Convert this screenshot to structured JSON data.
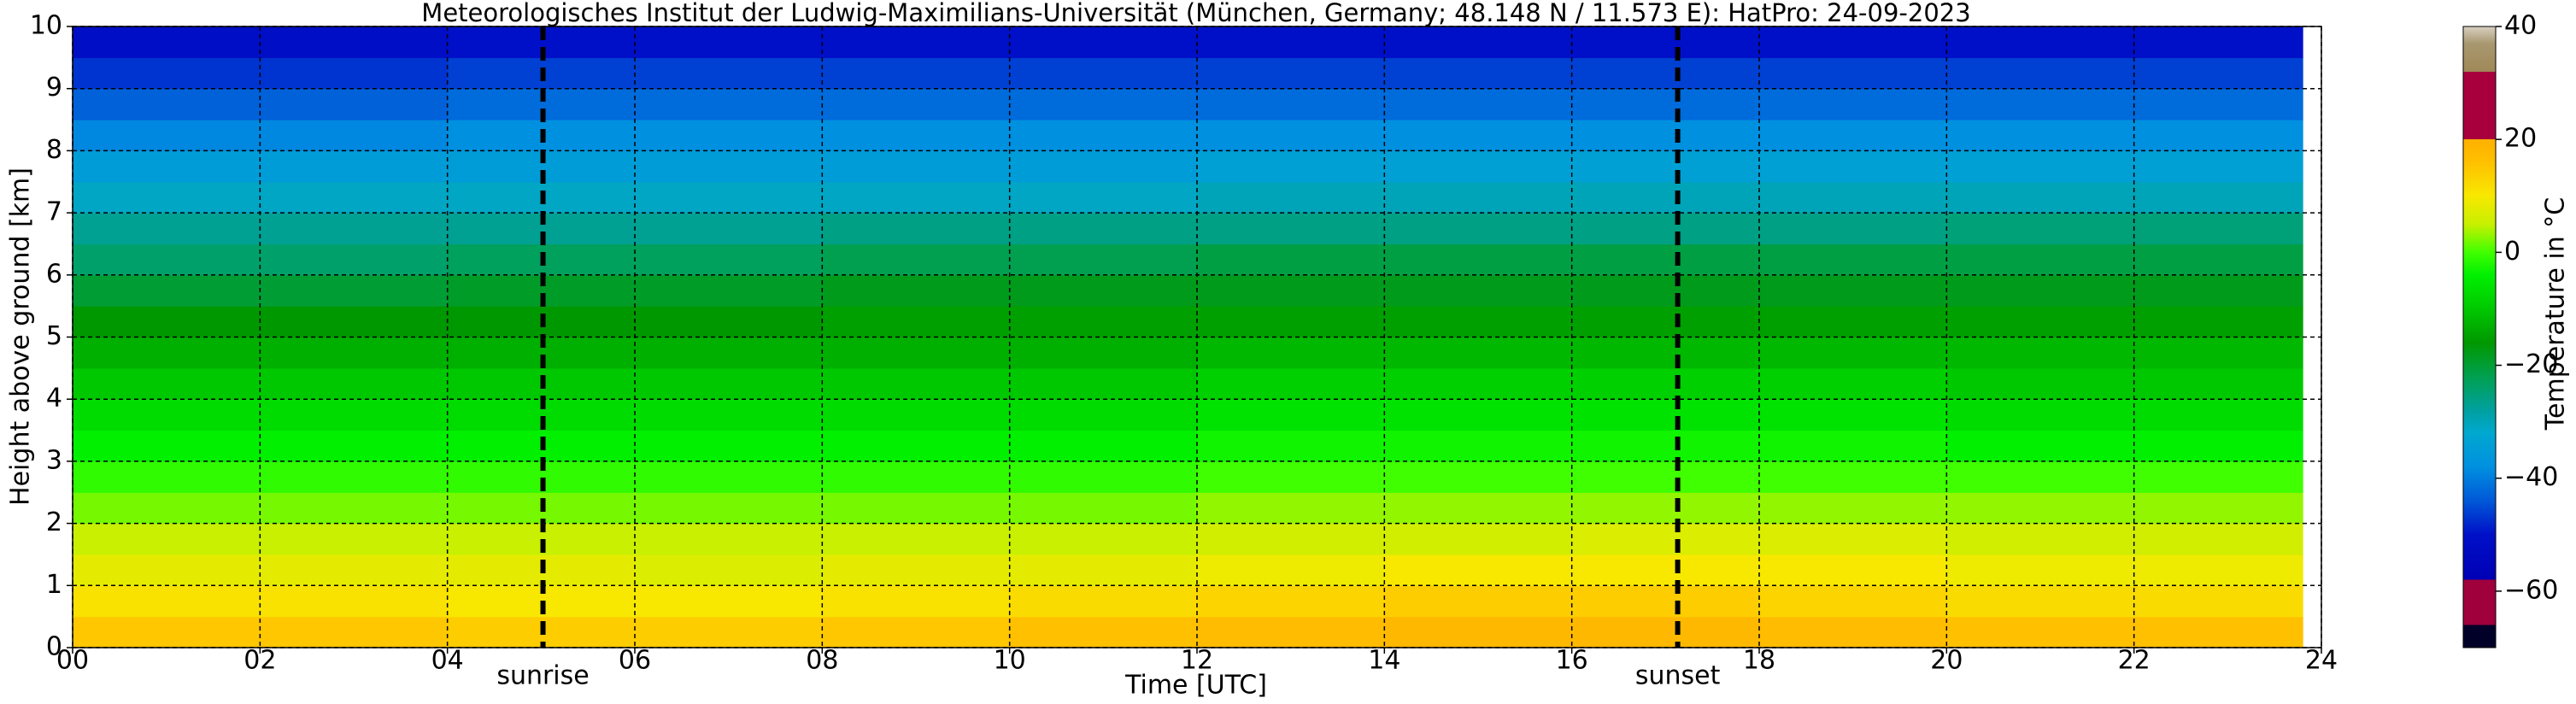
{
  "chart_data": {
    "type": "heatmap",
    "title": "Meteorologisches Institut der Ludwig-Maximilians-Universität (München, Germany; 48.148 N / 11.573 E):    HatPro: 24-09-2023",
    "xlabel": "Time [UTC]",
    "ylabel": "Height above ground [km]",
    "x_edges": [
      0,
      2,
      4,
      6,
      8,
      10,
      12,
      14,
      16,
      18,
      20,
      22,
      23.8
    ],
    "y_edges": [
      0,
      0.5,
      1,
      1.5,
      2,
      2.5,
      3,
      3.5,
      4,
      4.5,
      5,
      5.5,
      6,
      6.5,
      7,
      7.5,
      8,
      8.5,
      9,
      9.5,
      10
    ],
    "values": [
      [
        15,
        15,
        14,
        14,
        15,
        16,
        17,
        18,
        18,
        17,
        16,
        16
      ],
      [
        11,
        11,
        10,
        10,
        11,
        12,
        13,
        14,
        14,
        13,
        12,
        12
      ],
      [
        8,
        8,
        8,
        7,
        8,
        8,
        9,
        10,
        10,
        10,
        9,
        9
      ],
      [
        5,
        5,
        5,
        5,
        5,
        5,
        6,
        6,
        7,
        7,
        6,
        6
      ],
      [
        2,
        2,
        2,
        2,
        2,
        2,
        3,
        3,
        3,
        3,
        3,
        3
      ],
      [
        -1,
        -1,
        -1,
        -1,
        -1,
        -1,
        0,
        0,
        0,
        0,
        0,
        0
      ],
      [
        -4,
        -4,
        -4,
        -4,
        -4,
        -4,
        -3,
        -3,
        -3,
        -3,
        -4,
        -4
      ],
      [
        -7,
        -7,
        -7,
        -7,
        -7,
        -7,
        -6,
        -6,
        -6,
        -6,
        -7,
        -7
      ],
      [
        -10,
        -10,
        -10,
        -10,
        -10,
        -10,
        -9,
        -9,
        -9,
        -9,
        -10,
        -10
      ],
      [
        -13,
        -13,
        -13,
        -13,
        -13,
        -13,
        -12,
        -12,
        -12,
        -12,
        -12,
        -12
      ],
      [
        -16,
        -16,
        -16,
        -16,
        -15,
        -15,
        -15,
        -15,
        -15,
        -15,
        -15,
        -15
      ],
      [
        -20,
        -20,
        -19,
        -19,
        -18,
        -18,
        -18,
        -18,
        -18,
        -18,
        -18,
        -18
      ],
      [
        -24,
        -24,
        -23,
        -23,
        -22,
        -22,
        -21,
        -21,
        -21,
        -21,
        -21,
        -21
      ],
      [
        -27,
        -27,
        -27,
        -27,
        -26,
        -26,
        -26,
        -26,
        -26,
        -26,
        -25,
        -25
      ],
      [
        -31,
        -31,
        -31,
        -31,
        -31,
        -31,
        -30,
        -30,
        -30,
        -30,
        -30,
        -30
      ],
      [
        -35,
        -35,
        -35,
        -35,
        -35,
        -35,
        -34,
        -34,
        -34,
        -34,
        -34,
        -34
      ],
      [
        -39,
        -39,
        -38,
        -38,
        -38,
        -38,
        -38,
        -38,
        -38,
        -38,
        -38,
        -38
      ],
      [
        -43,
        -43,
        -42,
        -42,
        -42,
        -42,
        -42,
        -42,
        -42,
        -42,
        -42,
        -42
      ],
      [
        -47,
        -47,
        -46,
        -46,
        -46,
        -46,
        -46,
        -46,
        -46,
        -46,
        -46,
        -46
      ],
      [
        -51,
        -51,
        -50,
        -50,
        -50,
        -50,
        -50,
        -50,
        -50,
        -50,
        -50,
        -50
      ]
    ],
    "xlim": [
      0,
      24
    ],
    "ylim": [
      0,
      10
    ],
    "xticks": [
      {
        "value": 0,
        "label": "00"
      },
      {
        "value": 2,
        "label": "02"
      },
      {
        "value": 4,
        "label": "04"
      },
      {
        "value": 6,
        "label": "06"
      },
      {
        "value": 8,
        "label": "08"
      },
      10,
      12,
      14,
      16,
      18,
      20,
      22,
      24
    ],
    "yticks": [
      0,
      1,
      2,
      3,
      4,
      5,
      6,
      7,
      8,
      9,
      10
    ],
    "grid": true,
    "annotations": [
      {
        "x": 5.02,
        "label": "sunrise"
      },
      {
        "x": 17.13,
        "label": "sunset"
      }
    ],
    "colorbar": {
      "label": "Temperature in °C",
      "lim": [
        -70,
        40
      ],
      "ticks": [
        {
          "value": -60,
          "label": "−60"
        },
        {
          "value": -40,
          "label": "−40"
        },
        {
          "value": -20,
          "label": "−20"
        },
        0,
        20,
        40
      ],
      "stops": [
        {
          "value": -70,
          "color": "#000028"
        },
        {
          "value": -66,
          "color": "#000028"
        },
        {
          "value": -66,
          "color": "#a0003c"
        },
        {
          "value": -58,
          "color": "#a0003c"
        },
        {
          "value": -58,
          "color": "#0000b4"
        },
        {
          "value": -50,
          "color": "#0010c8"
        },
        {
          "value": -44,
          "color": "#0058d8"
        },
        {
          "value": -38,
          "color": "#0090e0"
        },
        {
          "value": -32,
          "color": "#00a8d0"
        },
        {
          "value": -28,
          "color": "#00a0a0"
        },
        {
          "value": -22,
          "color": "#00a050"
        },
        {
          "value": -16,
          "color": "#009800"
        },
        {
          "value": -10,
          "color": "#00c800"
        },
        {
          "value": -4,
          "color": "#00f000"
        },
        {
          "value": 0,
          "color": "#40ff00"
        },
        {
          "value": 5,
          "color": "#c8f000"
        },
        {
          "value": 10,
          "color": "#f8e800"
        },
        {
          "value": 16,
          "color": "#ffc000"
        },
        {
          "value": 20,
          "color": "#ffb000"
        },
        {
          "value": 20,
          "color": "#a8003c"
        },
        {
          "value": 32,
          "color": "#a8003c"
        },
        {
          "value": 32,
          "color": "#a08858"
        },
        {
          "value": 37,
          "color": "#a89870"
        },
        {
          "value": 40,
          "color": "#d8d0c0"
        }
      ]
    }
  }
}
